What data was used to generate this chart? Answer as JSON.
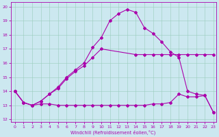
{
  "xlabel": "Windchill (Refroidissement éolien,°C)",
  "background_color": "#cce8f0",
  "line_color": "#aa00aa",
  "xlim_min": -0.5,
  "xlim_max": 23.3,
  "ylim_min": 11.8,
  "ylim_max": 20.3,
  "yticks": [
    12,
    13,
    14,
    15,
    16,
    17,
    18,
    19,
    20
  ],
  "xticks": [
    0,
    1,
    2,
    3,
    4,
    5,
    6,
    7,
    8,
    9,
    10,
    11,
    12,
    13,
    14,
    15,
    16,
    17,
    18,
    19,
    20,
    21,
    22,
    23
  ],
  "line1_x": [
    0,
    1,
    2,
    3,
    4,
    5,
    6,
    7,
    8,
    9,
    10,
    11,
    12,
    13,
    14,
    15,
    16,
    17,
    18,
    19,
    20,
    21,
    22,
    23
  ],
  "line1_y": [
    14.0,
    13.2,
    13.0,
    13.1,
    13.1,
    13.0,
    13.0,
    13.0,
    13.0,
    13.0,
    13.0,
    13.0,
    13.0,
    13.0,
    13.0,
    13.0,
    13.1,
    13.1,
    13.2,
    13.8,
    13.6,
    13.6,
    13.7,
    12.5
  ],
  "line2_x": [
    0,
    1,
    2,
    3,
    4,
    5,
    6,
    7,
    8,
    9,
    10,
    14,
    15,
    16,
    17,
    18,
    19,
    20,
    21,
    22,
    23
  ],
  "line2_y": [
    14.0,
    13.2,
    13.0,
    13.3,
    13.8,
    14.2,
    14.9,
    15.4,
    15.8,
    16.4,
    17.0,
    16.6,
    16.6,
    16.6,
    16.6,
    16.6,
    16.6,
    16.6,
    16.6,
    16.6,
    16.6
  ],
  "line3_x": [
    0,
    1,
    2,
    3,
    4,
    5,
    6,
    7,
    8,
    9,
    10,
    11,
    12,
    13,
    14,
    15,
    16,
    17,
    18,
    19,
    20,
    21,
    22,
    23
  ],
  "line3_y": [
    14.0,
    13.2,
    13.0,
    13.3,
    13.8,
    14.3,
    15.0,
    15.5,
    16.0,
    17.1,
    17.8,
    19.0,
    19.5,
    19.8,
    19.6,
    18.5,
    18.1,
    17.5,
    16.8,
    16.4,
    14.0,
    13.8,
    13.7,
    12.5
  ]
}
